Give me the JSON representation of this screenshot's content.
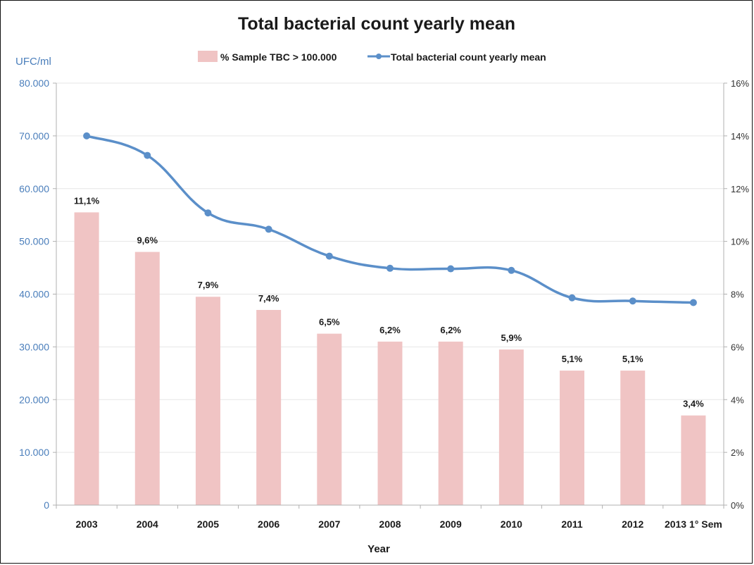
{
  "chart_data": {
    "type": "bar",
    "title": "Total bacterial count yearly mean",
    "ylabel": "UFC/ml",
    "xlabel": "Year",
    "categories": [
      "2003",
      "2004",
      "2005",
      "2006",
      "2007",
      "2008",
      "2009",
      "2010",
      "2011",
      "2012",
      "2013 1° Sem"
    ],
    "y_left": {
      "ylim": [
        0,
        80000
      ],
      "ticks": [
        0,
        10000,
        20000,
        30000,
        40000,
        50000,
        60000,
        70000,
        80000
      ],
      "tick_labels": [
        "0",
        "10.000",
        "20.000",
        "30.000",
        "40.000",
        "50.000",
        "60.000",
        "70.000",
        "80.000"
      ]
    },
    "y_right": {
      "ylim": [
        0,
        16
      ],
      "ticks": [
        0,
        2,
        4,
        6,
        8,
        10,
        12,
        14,
        16
      ],
      "tick_labels": [
        "0%",
        "2%",
        "4%",
        "6%",
        "8%",
        "10%",
        "12%",
        "14%",
        "16%"
      ]
    },
    "series": [
      {
        "name": "% Sample TBC > 100.000",
        "type": "bar",
        "axis": "right",
        "color": "#f0c4c4",
        "values": [
          11.1,
          9.6,
          7.9,
          7.4,
          6.5,
          6.2,
          6.2,
          5.9,
          5.1,
          5.1,
          3.4
        ],
        "labels": [
          "11,1%",
          "9,6%",
          "7,9%",
          "7,4%",
          "6,5%",
          "6,2%",
          "6,2%",
          "5,9%",
          "5,1%",
          "5,1%",
          "3,4%"
        ]
      },
      {
        "name": "Total bacterial count yearly mean",
        "type": "line",
        "axis": "left",
        "color": "#5b8fc9",
        "smooth": true,
        "values": [
          70000,
          66300,
          55400,
          52300,
          47200,
          44900,
          44800,
          44500,
          39300,
          38700,
          38400
        ]
      }
    ],
    "legend_position": "top",
    "grid": true,
    "axis_colors": {
      "left": "#4a7ebb",
      "right": "#333333"
    }
  }
}
